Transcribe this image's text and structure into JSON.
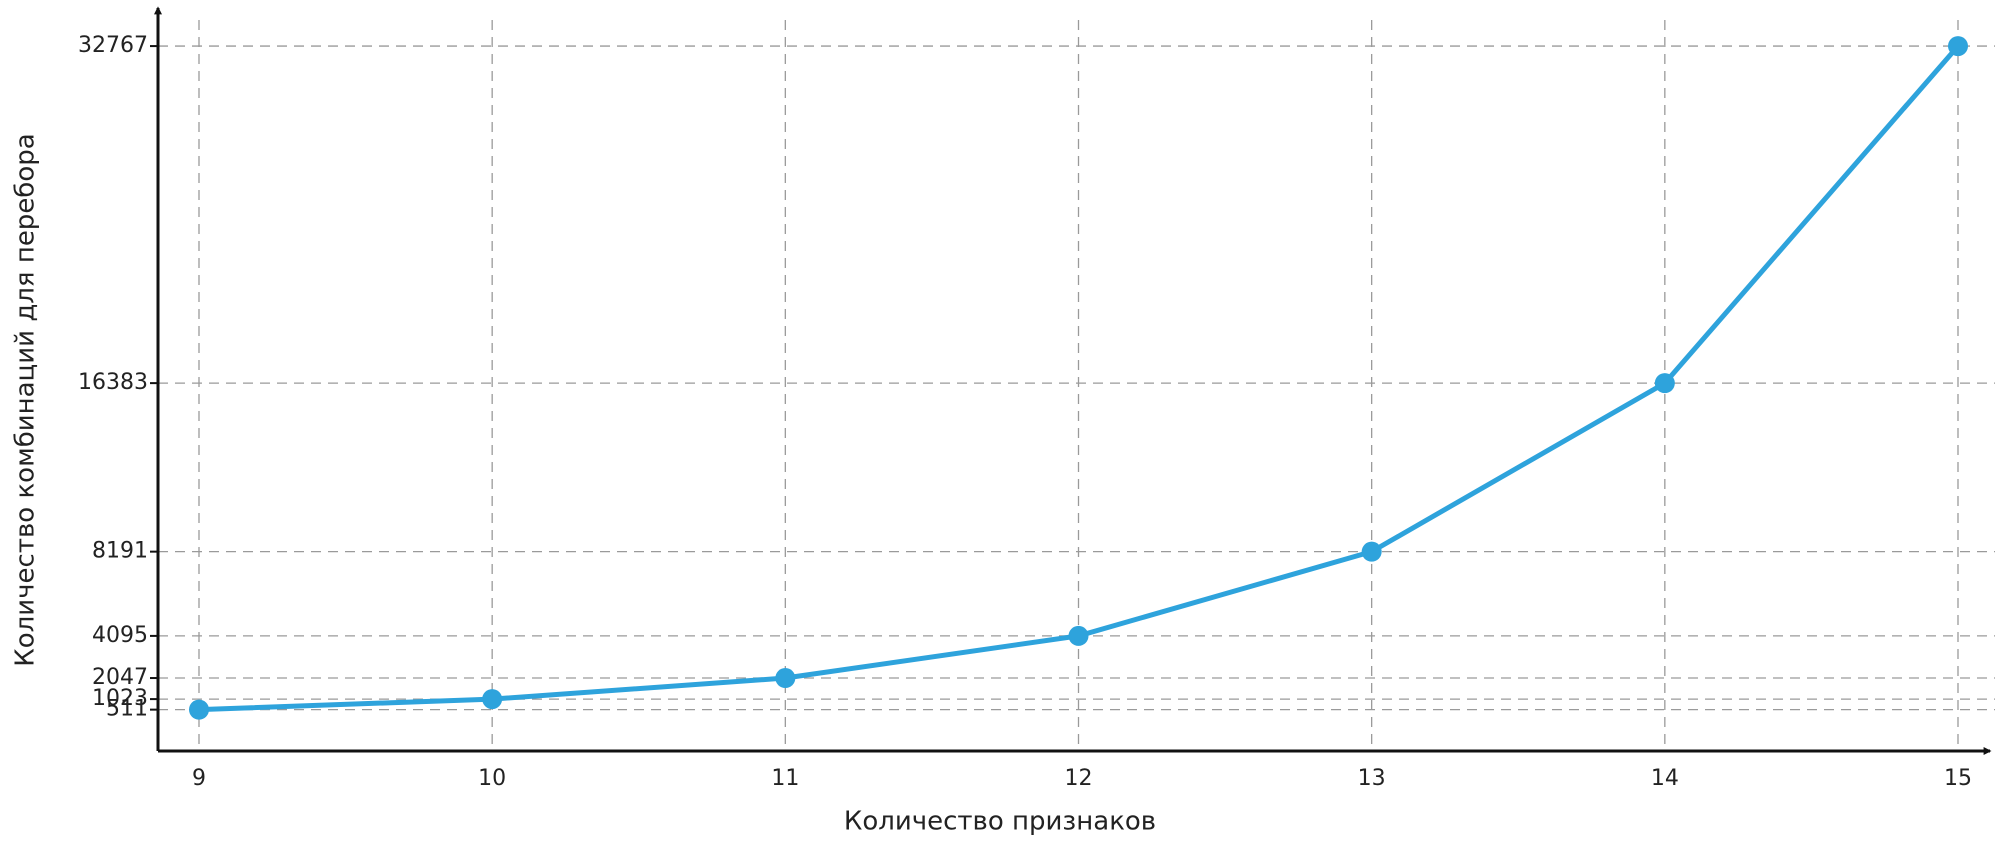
{
  "chart_data": {
    "type": "line",
    "x_label": "Количество признаков",
    "y_label": "Количество комбинаций для перебора",
    "x": [
      9,
      10,
      11,
      12,
      13,
      14,
      15
    ],
    "series": [
      {
        "color": "#2ea3dc",
        "values": [
          511,
          1023,
          2047,
          4095,
          8191,
          16383,
          32767
        ]
      }
    ],
    "xlim": [
      9,
      15
    ],
    "xticks": [
      9,
      10,
      11,
      12,
      13,
      14,
      15
    ],
    "ylim": [
      -1500,
      33500
    ],
    "yticks": [
      511,
      1023,
      2047,
      4095,
      8191,
      16383,
      32767
    ],
    "grid": true
  }
}
